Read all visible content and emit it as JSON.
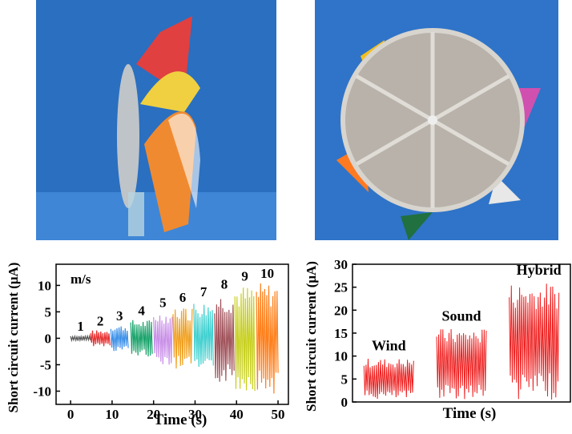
{
  "chart_data": [
    {
      "type": "segments",
      "y_label": "Short circuit current (μA)",
      "x_label": "Time (s)",
      "annotation": "m/s",
      "xlim": [
        -3.5,
        52.5
      ],
      "xticks": [
        0,
        10,
        20,
        30,
        40,
        50
      ],
      "ylim": [
        -12.5,
        14
      ],
      "yticks": [
        -10,
        -5,
        0,
        5,
        10
      ],
      "series": [
        {
          "name": "1",
          "color": "#555555",
          "x_start": 0,
          "x_end": 4.8,
          "max": 0.5,
          "min": -0.5
        },
        {
          "name": "2",
          "color": "#e83030",
          "x_start": 4.8,
          "x_end": 9.5,
          "max": 1.5,
          "min": -1.5
        },
        {
          "name": "3",
          "color": "#3a8fe8",
          "x_start": 9.7,
          "x_end": 13.9,
          "max": 2.5,
          "min": -2.5
        },
        {
          "name": "4",
          "color": "#1aa36b",
          "x_start": 14.5,
          "x_end": 19.7,
          "max": 3.5,
          "min": -3.5
        },
        {
          "name": "5",
          "color": "#c98fe8",
          "x_start": 20,
          "x_end": 24.5,
          "max": 5,
          "min": -5
        },
        {
          "name": "6",
          "color": "#f0a020",
          "x_start": 24.7,
          "x_end": 29.3,
          "max": 6,
          "min": -6
        },
        {
          "name": "7",
          "color": "#3fd0d0",
          "x_start": 29.7,
          "x_end": 34.4,
          "max": 7,
          "min": -7
        },
        {
          "name": "8",
          "color": "#a0525a",
          "x_start": 34.7,
          "x_end": 39.4,
          "max": 8.5,
          "min": -8.5
        },
        {
          "name": "9",
          "color": "#c8d020",
          "x_start": 39.6,
          "x_end": 44.4,
          "max": 10,
          "min": -10
        },
        {
          "name": "10",
          "color": "#ff7f1a",
          "x_start": 44.8,
          "x_end": 50,
          "max": 10.5,
          "min": -10.5
        }
      ]
    },
    {
      "type": "category-segments",
      "y_label": "Short circuit current (μA)",
      "x_label": "Time (s)",
      "ylim": [
        0,
        30
      ],
      "yticks": [
        0,
        5,
        10,
        15,
        20,
        25,
        30
      ],
      "series": [
        {
          "name": "Wind",
          "color": "#ee1c1c",
          "max": 9.5,
          "min": 0.5
        },
        {
          "name": "Sound",
          "color": "#ee1c1c",
          "max": 16,
          "min": 0.5
        },
        {
          "name": "Hybrid",
          "color": "#ee1c1c",
          "max": 26,
          "min": 0.5
        }
      ]
    }
  ]
}
